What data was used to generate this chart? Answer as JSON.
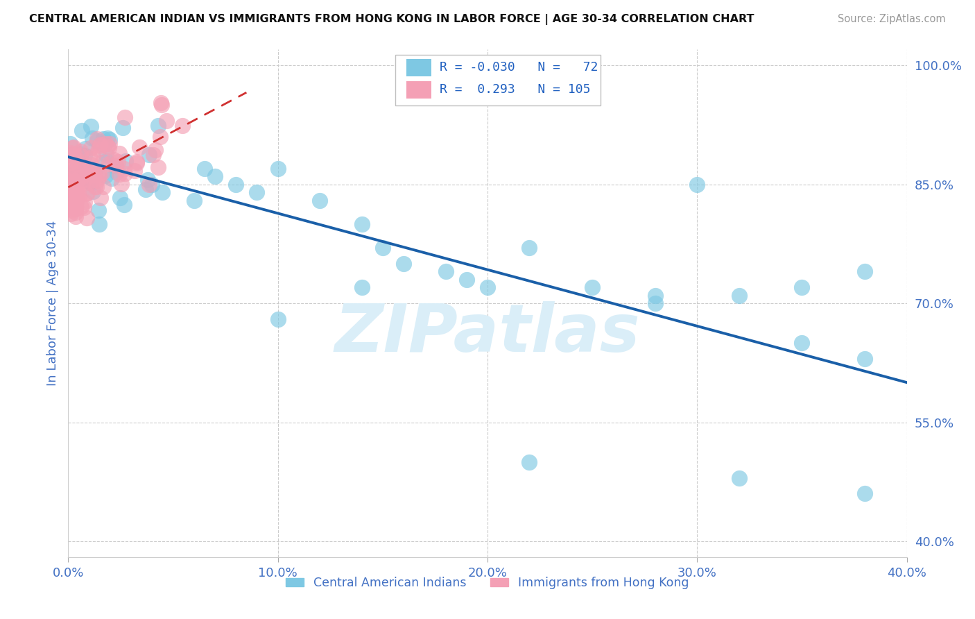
{
  "title": "CENTRAL AMERICAN INDIAN VS IMMIGRANTS FROM HONG KONG IN LABOR FORCE | AGE 30-34 CORRELATION CHART",
  "source": "Source: ZipAtlas.com",
  "ylabel": "In Labor Force | Age 30-34",
  "xlim": [
    0.0,
    0.4
  ],
  "ylim": [
    0.38,
    1.02
  ],
  "xticks": [
    0.0,
    0.1,
    0.2,
    0.3,
    0.4
  ],
  "xtick_labels": [
    "0.0%",
    "10.0%",
    "20.0%",
    "30.0%",
    "40.0%"
  ],
  "ytick_labels": [
    "100.0%",
    "85.0%",
    "70.0%",
    "55.0%",
    "40.0%"
  ],
  "ytick_vals": [
    1.0,
    0.85,
    0.7,
    0.55,
    0.4
  ],
  "color_blue": "#7ec8e3",
  "color_pink": "#f4a0b5",
  "color_blue_line": "#1a5fa8",
  "color_pink_line": "#d03030",
  "background_color": "#ffffff",
  "watermark_color": "#daeef8",
  "R_blue": -0.03,
  "N_blue": 72,
  "R_pink": 0.293,
  "N_pink": 105,
  "legend_text_color": "#2060c0",
  "axis_color": "#4472c4",
  "grid_color": "#cccccc"
}
